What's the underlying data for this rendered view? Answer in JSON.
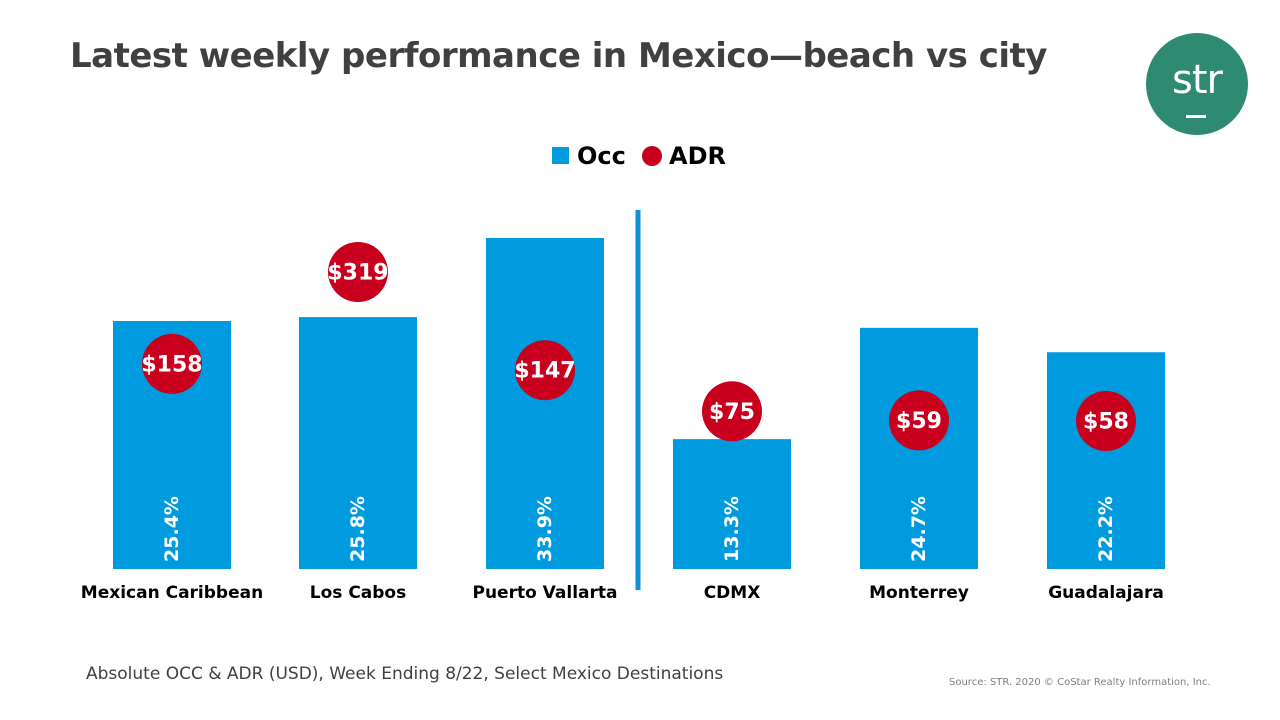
{
  "title": "Latest weekly performance in Mexico—beach vs city",
  "logo": {
    "text": "str",
    "color": "#2e8b72"
  },
  "footnote": "Absolute OCC & ADR (USD), Week Ending 8/22, Select Mexico Destinations",
  "source": "Source: STR. 2020 © CoStar Realty Information, Inc.",
  "chart_data": {
    "type": "bar",
    "title": "Latest weekly performance in Mexico—beach vs city",
    "categories": [
      "Mexican Caribbean",
      "Los Cabos",
      "Puerto Vallarta",
      "CDMX",
      "Monterrey",
      "Guadalajara"
    ],
    "groups": [
      {
        "name": "beach",
        "categories": [
          "Mexican Caribbean",
          "Los Cabos",
          "Puerto Vallarta"
        ]
      },
      {
        "name": "city",
        "categories": [
          "CDMX",
          "Monterrey",
          "Guadalajara"
        ]
      }
    ],
    "series": [
      {
        "name": "Occ",
        "kind": "bar",
        "unit": "%",
        "color": "#009ade",
        "values": [
          25.4,
          25.8,
          33.9,
          13.3,
          24.7,
          22.2
        ],
        "labels": [
          "25.4%",
          "25.8%",
          "33.9%",
          "13.3%",
          "24.7%",
          "22.2%"
        ]
      },
      {
        "name": "ADR",
        "kind": "marker",
        "unit": "USD",
        "color": "#c8001e",
        "values": [
          158,
          319,
          147,
          75,
          59,
          58
        ],
        "labels": [
          "$158",
          "$319",
          "$147",
          "$75",
          "$59",
          "$58"
        ]
      }
    ],
    "legend": [
      "Occ",
      "ADR"
    ],
    "legend_position": "top-center",
    "xlabel": "",
    "ylabel": "",
    "occ_range": [
      0,
      40
    ],
    "adr_range": [
      0,
      400
    ],
    "grid": false
  }
}
